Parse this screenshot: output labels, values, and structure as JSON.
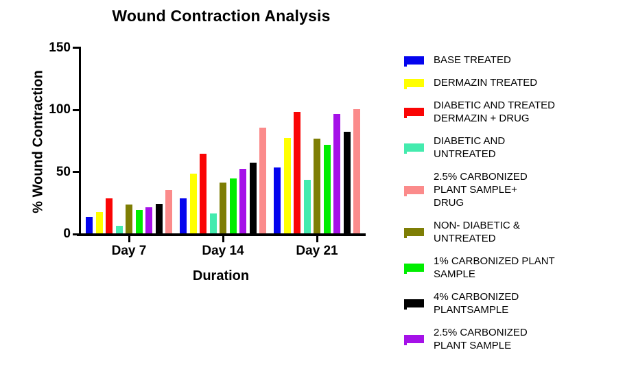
{
  "chart": {
    "title": "Wound Contraction Analysis",
    "ylabel": "% Wound Contraction",
    "xlabel": "Duration"
  },
  "chart_data": {
    "type": "bar",
    "title": "Wound Contraction Analysis",
    "xlabel": "Duration",
    "ylabel": "% Wound Contraction",
    "ylim": [
      0,
      150
    ],
    "yticks": [
      0,
      50,
      100,
      150
    ],
    "grid": false,
    "legend_position": "right",
    "categories": [
      "Day 7",
      "Day 14",
      "Day 21"
    ],
    "series": [
      {
        "name": "BASE TREATED",
        "color": "#0404EE",
        "values": [
          13,
          28,
          53
        ]
      },
      {
        "name": "DERMAZIN TREATED",
        "color": "#FFFF00",
        "values": [
          17,
          48,
          77
        ]
      },
      {
        "name": "DIABETIC AND TREATED DERMAZIN + DRUG",
        "color": "#FA0505",
        "values": [
          28,
          64,
          98
        ]
      },
      {
        "name": "DIABETIC AND UNTREATED",
        "color": "#44EBAE",
        "values": [
          6,
          16,
          43
        ]
      },
      {
        "name": "NON- DIABETIC & UNTREATED",
        "color": "#7E7E05",
        "values": [
          23,
          41,
          76
        ]
      },
      {
        "name": "1% CARBONIZED PLANT SAMPLE",
        "color": "#00EE00",
        "values": [
          19,
          44,
          71
        ]
      },
      {
        "name": "2.5% CARBONIZED PLANT SAMPLE",
        "color": "#A511E8",
        "values": [
          21,
          52,
          96
        ]
      },
      {
        "name": "4% CARBONIZED PLANTSAMPLE",
        "color": "#000000",
        "values": [
          24,
          57,
          82
        ]
      },
      {
        "name": "2.5% CARBONIZED PLANT SAMPLE+ DRUG",
        "color": "#FB8B8B",
        "values": [
          35,
          85,
          100
        ]
      }
    ]
  },
  "legend": {
    "items": [
      {
        "label": "BASE TREATED",
        "color": "#0404EE"
      },
      {
        "label": "DERMAZIN TREATED",
        "color": "#FFFF00"
      },
      {
        "label": "DIABETIC AND TREATED\nDERMAZIN + DRUG",
        "color": "#FA0505"
      },
      {
        "label": "DIABETIC AND\nUNTREATED",
        "color": "#44EBAE"
      },
      {
        "label": "2.5% CARBONIZED\nPLANT SAMPLE+\nDRUG",
        "color": "#FB8B8B"
      },
      {
        "label": "NON- DIABETIC &\nUNTREATED",
        "color": "#7E7E05"
      },
      {
        "label": "1% CARBONIZED PLANT\nSAMPLE",
        "color": "#00EE00"
      },
      {
        "label": "4% CARBONIZED\nPLANTSAMPLE",
        "color": "#000000"
      },
      {
        "label": "2.5% CARBONIZED\nPLANT SAMPLE",
        "color": "#A511E8"
      }
    ]
  }
}
